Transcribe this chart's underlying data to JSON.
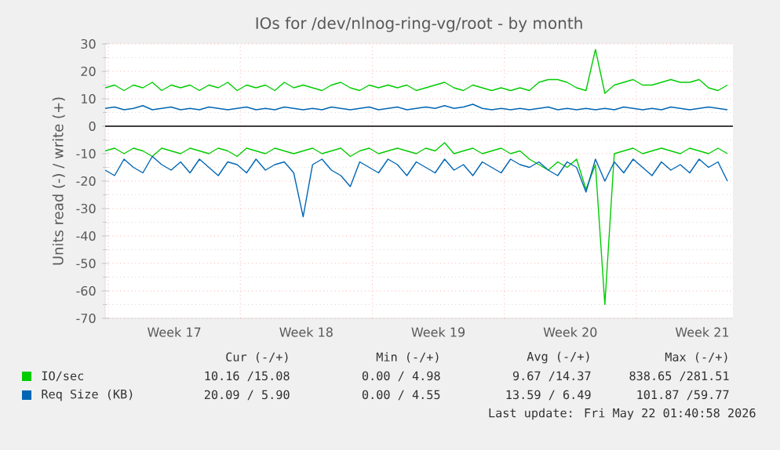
{
  "chart_data": {
    "type": "line",
    "title": "IOs for /dev/nlnog-ring-vg/root - by month",
    "ylabel": "Units read (-) / write (+)",
    "xlim": [
      "2026-04-18T20:00",
      "2026-05-22T03:00"
    ],
    "ylim": [
      -70,
      30
    ],
    "yticks": [
      -70,
      -60,
      -50,
      -40,
      -30,
      -20,
      -10,
      0,
      10,
      20,
      30
    ],
    "xticks": [
      {
        "value": "2026-04-19",
        "label": null
      },
      {
        "value": "2026-04-22T12:00",
        "label": "Week 17"
      },
      {
        "value": "2026-04-26",
        "label": null
      },
      {
        "value": "2026-04-29T12:00",
        "label": "Week 18"
      },
      {
        "value": "2026-05-03",
        "label": null
      },
      {
        "value": "2026-05-06T12:00",
        "label": "Week 19"
      },
      {
        "value": "2026-05-10",
        "label": null
      },
      {
        "value": "2026-05-13T12:00",
        "label": "Week 20"
      },
      {
        "value": "2026-05-17",
        "label": null
      },
      {
        "value": "2026-05-20T12:00",
        "label": "Week 21"
      }
    ],
    "grid": true,
    "legend": "bottom",
    "x": [
      "2026-04-18T20:00",
      "2026-04-19T08:00",
      "2026-04-19T20:00",
      "2026-04-20T08:00",
      "2026-04-20T20:00",
      "2026-04-21T08:00",
      "2026-04-21T20:00",
      "2026-04-22T08:00",
      "2026-04-22T20:00",
      "2026-04-23T08:00",
      "2026-04-23T20:00",
      "2026-04-24T08:00",
      "2026-04-24T20:00",
      "2026-04-25T08:00",
      "2026-04-25T20:00",
      "2026-04-26T08:00",
      "2026-04-26T20:00",
      "2026-04-27T08:00",
      "2026-04-27T20:00",
      "2026-04-28T08:00",
      "2026-04-28T20:00",
      "2026-04-29T08:00",
      "2026-04-29T20:00",
      "2026-04-30T08:00",
      "2026-04-30T20:00",
      "2026-05-01T08:00",
      "2026-05-01T20:00",
      "2026-05-02T08:00",
      "2026-05-02T20:00",
      "2026-05-03T08:00",
      "2026-05-03T20:00",
      "2026-05-04T08:00",
      "2026-05-04T20:00",
      "2026-05-05T08:00",
      "2026-05-05T20:00",
      "2026-05-06T08:00",
      "2026-05-06T20:00",
      "2026-05-07T08:00",
      "2026-05-07T20:00",
      "2026-05-08T08:00",
      "2026-05-08T20:00",
      "2026-05-09T08:00",
      "2026-05-09T20:00",
      "2026-05-10T08:00",
      "2026-05-10T20:00",
      "2026-05-11T08:00",
      "2026-05-11T20:00",
      "2026-05-12T08:00",
      "2026-05-12T20:00",
      "2026-05-13T08:00",
      "2026-05-13T20:00",
      "2026-05-14T08:00",
      "2026-05-14T20:00",
      "2026-05-15T08:00",
      "2026-05-15T20:00",
      "2026-05-16T08:00",
      "2026-05-16T20:00",
      "2026-05-17T08:00",
      "2026-05-17T20:00",
      "2026-05-18T08:00",
      "2026-05-18T20:00",
      "2026-05-19T08:00",
      "2026-05-19T20:00",
      "2026-05-20T08:00",
      "2026-05-20T20:00",
      "2026-05-21T08:00",
      "2026-05-21T20:00"
    ],
    "series": [
      {
        "name": "IO/sec",
        "color": "#00cc00",
        "values": [
          14,
          15,
          13,
          15,
          14,
          16,
          13,
          15,
          14,
          15,
          13,
          15,
          14,
          16,
          13,
          15,
          14,
          15,
          13,
          16,
          14,
          15,
          14,
          13,
          15,
          16,
          14,
          13,
          15,
          14,
          15,
          14,
          15,
          13,
          14,
          15,
          16,
          14,
          13,
          15,
          14,
          13,
          14,
          13,
          14,
          13,
          16,
          17,
          17,
          16,
          14,
          13,
          28,
          12,
          15,
          16,
          17,
          15,
          15,
          16,
          17,
          16,
          16,
          17,
          14,
          13,
          15
        ]
      },
      {
        "color": "#00cc00",
        "values": [
          -9,
          -8,
          -10,
          -8,
          -9,
          -11,
          -8,
          -9,
          -10,
          -8,
          -9,
          -10,
          -8,
          -9,
          -11,
          -8,
          -9,
          -10,
          -8,
          -9,
          -10,
          -9,
          -8,
          -10,
          -9,
          -8,
          -11,
          -9,
          -8,
          -10,
          -9,
          -8,
          -9,
          -10,
          -8,
          -9,
          -6,
          -10,
          -9,
          -8,
          -10,
          -9,
          -8,
          -10,
          -9,
          -12,
          -14,
          -16,
          -13,
          -15,
          -12,
          -23,
          -14,
          -65,
          -10,
          -9,
          -8,
          -10,
          -9,
          -8,
          -9,
          -10,
          -8,
          -9,
          -10,
          -8,
          -10
        ]
      },
      {
        "name": "Req Size (KB)",
        "color": "#0066b3",
        "values": [
          6.5,
          7,
          6,
          6.5,
          7.5,
          6,
          6.5,
          7,
          6,
          6.5,
          6,
          7,
          6.5,
          6,
          6.5,
          7,
          6,
          6.5,
          6,
          7,
          6.5,
          6,
          6.5,
          6,
          7,
          6.5,
          6,
          6.5,
          7,
          6,
          6.5,
          7,
          6,
          6.5,
          7,
          6.5,
          7.5,
          6.5,
          7,
          8,
          6.5,
          6,
          6.5,
          6,
          6.5,
          6,
          6.5,
          7,
          6,
          6.5,
          6,
          6.5,
          6,
          6.5,
          6,
          7,
          6.5,
          6,
          6.5,
          6,
          7,
          6.5,
          6,
          6.5,
          7,
          6.5,
          6
        ]
      },
      {
        "color": "#0066b3",
        "values": [
          -16,
          -18,
          -12,
          -15,
          -17,
          -11,
          -14,
          -16,
          -13,
          -17,
          -12,
          -15,
          -18,
          -13,
          -14,
          -17,
          -12,
          -16,
          -14,
          -13,
          -17,
          -33,
          -14,
          -12,
          -16,
          -18,
          -22,
          -13,
          -15,
          -17,
          -12,
          -14,
          -18,
          -13,
          -15,
          -17,
          -12,
          -16,
          -14,
          -18,
          -13,
          -15,
          -17,
          -12,
          -14,
          -15,
          -13,
          -16,
          -18,
          -13,
          -15,
          -24,
          -12,
          -20,
          -13,
          -17,
          -12,
          -15,
          -18,
          -13,
          -16,
          -14,
          -17,
          -12,
          -15,
          -13,
          -20
        ]
      }
    ],
    "ref_lines": [
      {
        "axis": "y",
        "value": 0,
        "color": "#000000"
      }
    ],
    "annotations": [
      "Cur (-/+)",
      "Min (-/+)",
      "Avg (-/+)",
      "Max (-/+)",
      "10.16 /15.08",
      "0.00 / 4.98",
      "9.67 /14.37",
      "838.65 /281.51",
      "20.09 / 5.90",
      "0.00 / 4.55",
      "13.59 / 6.49",
      "101.87 /59.77",
      "Last update: Fri May 22 01:40:58 2026"
    ]
  }
}
